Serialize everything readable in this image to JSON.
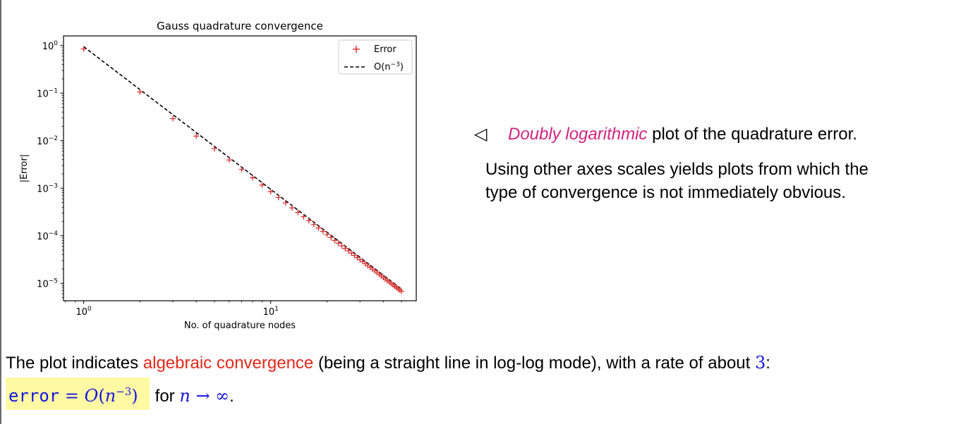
{
  "chart_data": {
    "type": "scatter",
    "title": "Gauss quadrature convergence",
    "xlabel": "No. of quadrature nodes",
    "ylabel": "|Error|",
    "xscale": "log",
    "yscale": "log",
    "xlim": [
      0.78,
      60
    ],
    "ylim": [
      4.3e-06,
      1.6
    ],
    "x_ticks": [
      {
        "value": 1,
        "base": "10",
        "exp": "0"
      },
      {
        "value": 10,
        "base": "10",
        "exp": "1"
      }
    ],
    "y_ticks": [
      {
        "value": 1,
        "base": "10",
        "exp": "0"
      },
      {
        "value": 0.1,
        "base": "10",
        "exp": "−1"
      },
      {
        "value": 0.01,
        "base": "10",
        "exp": "−2"
      },
      {
        "value": 0.001,
        "base": "10",
        "exp": "−3"
      },
      {
        "value": 0.0001,
        "base": "10",
        "exp": "−4"
      },
      {
        "value": 1e-05,
        "base": "10",
        "exp": "−5"
      }
    ],
    "legend_position": "top-right",
    "series": [
      {
        "name": "Error",
        "marker": "+",
        "color": "#d62728",
        "n_min": 1,
        "n_max": 50,
        "formula": "0.85 * n^-3",
        "overrides": {
          "3": 0.029,
          "4": 0.0125
        }
      },
      {
        "name": "O(n",
        "name_sup": "−3",
        "name_end": ")",
        "style": "dashed",
        "color": "#000000",
        "x": [
          1,
          50
        ],
        "y": [
          0.95,
          7.6e-06
        ]
      }
    ]
  },
  "side": {
    "marker": "◁",
    "emphasis": "Doubly logarithmic",
    "line1_rest": " plot of the quadrature error.",
    "para2_line1": "Using other axes scales yields plots from which the",
    "para2_line2": "type of convergence is not immediately obvious."
  },
  "bottom": {
    "pre": "The plot indicates ",
    "highlight": "algebraic convergence",
    "post": " (being a straight line in log-log mode), with a rate of about ",
    "rate": "3",
    "colon": ":",
    "formula_lhs": "error",
    "formula_eq": " = ",
    "formula_O": "O",
    "formula_n": "n",
    "formula_exp": "−3",
    "for_text": "for ",
    "limit_n": "n",
    "limit_arrow": " → ∞",
    "period": "."
  },
  "colors": {
    "error_marker": "#d62728",
    "highlight_text": "#e3291b",
    "emphasis": "#d0237f",
    "math": "#1515e0",
    "formula_bg": "#fff9a3"
  }
}
